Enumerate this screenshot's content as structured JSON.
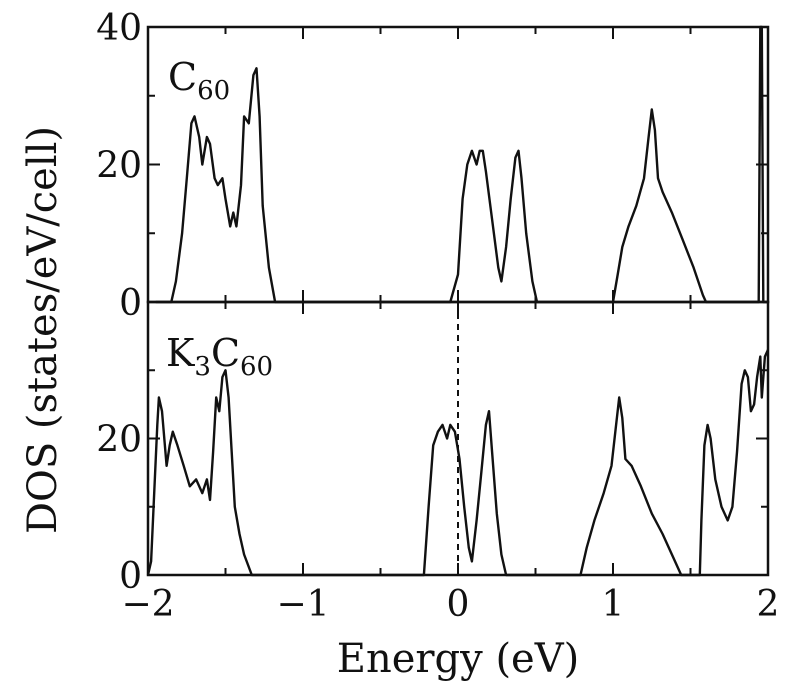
{
  "chart_data": {
    "type": "line",
    "xlabel": "Energy (eV)",
    "ylabel": "DOS (states/eV/cell)",
    "xlim": [
      -2,
      2
    ],
    "x_ticks": [
      "-2",
      "-1",
      "0",
      "1",
      "2"
    ],
    "fermi_level": 0,
    "panels": [
      {
        "label_main": "C",
        "label_sub": "60",
        "ylim": [
          0,
          40
        ],
        "y_ticks": [
          "0",
          "20",
          "40"
        ],
        "series": [
          {
            "points": [
              [
                -1.95,
                0
              ],
              [
                -1.85,
                0
              ],
              [
                -1.82,
                3
              ],
              [
                -1.78,
                10
              ],
              [
                -1.75,
                18
              ],
              [
                -1.72,
                26
              ],
              [
                -1.7,
                27
              ],
              [
                -1.67,
                24
              ],
              [
                -1.65,
                20
              ],
              [
                -1.62,
                24
              ],
              [
                -1.6,
                23
              ],
              [
                -1.57,
                18
              ],
              [
                -1.55,
                17
              ],
              [
                -1.52,
                18
              ],
              [
                -1.5,
                15
              ],
              [
                -1.47,
                11
              ],
              [
                -1.45,
                13
              ],
              [
                -1.43,
                11
              ],
              [
                -1.4,
                17
              ],
              [
                -1.38,
                27
              ],
              [
                -1.35,
                26
              ],
              [
                -1.32,
                33
              ],
              [
                -1.3,
                34
              ],
              [
                -1.28,
                27
              ],
              [
                -1.26,
                14
              ],
              [
                -1.22,
                5
              ],
              [
                -1.18,
                0
              ],
              [
                -1.1,
                0
              ],
              [
                -0.05,
                0
              ],
              [
                0,
                4
              ],
              [
                0.03,
                15
              ],
              [
                0.06,
                20
              ],
              [
                0.09,
                22
              ],
              [
                0.12,
                20
              ],
              [
                0.14,
                22
              ],
              [
                0.16,
                22
              ],
              [
                0.18,
                19
              ],
              [
                0.22,
                12
              ],
              [
                0.26,
                5
              ],
              [
                0.28,
                3
              ],
              [
                0.31,
                8
              ],
              [
                0.34,
                15
              ],
              [
                0.37,
                21
              ],
              [
                0.39,
                22
              ],
              [
                0.41,
                18
              ],
              [
                0.44,
                10
              ],
              [
                0.48,
                3
              ],
              [
                0.51,
                0
              ],
              [
                0.6,
                0
              ],
              [
                1.0,
                0
              ],
              [
                1.03,
                4
              ],
              [
                1.06,
                8
              ],
              [
                1.1,
                11
              ],
              [
                1.15,
                14
              ],
              [
                1.2,
                18
              ],
              [
                1.23,
                24
              ],
              [
                1.25,
                28
              ],
              [
                1.27,
                25
              ],
              [
                1.29,
                18
              ],
              [
                1.32,
                16
              ],
              [
                1.38,
                13
              ],
              [
                1.45,
                9
              ],
              [
                1.52,
                5
              ],
              [
                1.58,
                1
              ],
              [
                1.6,
                0
              ],
              [
                1.94,
                0
              ],
              [
                1.95,
                40
              ],
              [
                1.96,
                40
              ],
              [
                1.97,
                0
              ],
              [
                2.0,
                0
              ]
            ]
          }
        ]
      },
      {
        "label_main": "K",
        "label_sub1": "3",
        "label_main2": "C",
        "label_sub2": "60",
        "ylim": [
          0,
          40
        ],
        "y_ticks": [
          "0",
          "20"
        ],
        "series": [
          {
            "points": [
              [
                -2.0,
                0
              ],
              [
                -1.98,
                2
              ],
              [
                -1.96,
                12
              ],
              [
                -1.94,
                22
              ],
              [
                -1.93,
                26
              ],
              [
                -1.91,
                24
              ],
              [
                -1.88,
                16
              ],
              [
                -1.86,
                19
              ],
              [
                -1.84,
                21
              ],
              [
                -1.81,
                19
              ],
              [
                -1.77,
                16
              ],
              [
                -1.73,
                13
              ],
              [
                -1.69,
                14
              ],
              [
                -1.65,
                12
              ],
              [
                -1.62,
                14
              ],
              [
                -1.6,
                11
              ],
              [
                -1.58,
                18
              ],
              [
                -1.56,
                26
              ],
              [
                -1.54,
                24
              ],
              [
                -1.52,
                29
              ],
              [
                -1.5,
                30
              ],
              [
                -1.48,
                26
              ],
              [
                -1.46,
                18
              ],
              [
                -1.44,
                10
              ],
              [
                -1.41,
                6
              ],
              [
                -1.38,
                3
              ],
              [
                -1.33,
                0
              ],
              [
                -1.2,
                0
              ],
              [
                -0.22,
                0
              ],
              [
                -0.19,
                10
              ],
              [
                -0.16,
                19
              ],
              [
                -0.13,
                21
              ],
              [
                -0.1,
                22
              ],
              [
                -0.07,
                20
              ],
              [
                -0.05,
                22
              ],
              [
                -0.02,
                21
              ],
              [
                0.01,
                17
              ],
              [
                0.04,
                10
              ],
              [
                0.07,
                4
              ],
              [
                0.09,
                2
              ],
              [
                0.12,
                8
              ],
              [
                0.15,
                15
              ],
              [
                0.18,
                22
              ],
              [
                0.2,
                24
              ],
              [
                0.22,
                18
              ],
              [
                0.25,
                9
              ],
              [
                0.28,
                3
              ],
              [
                0.31,
                0
              ],
              [
                0.4,
                0
              ],
              [
                0.79,
                0
              ],
              [
                0.83,
                4
              ],
              [
                0.88,
                8
              ],
              [
                0.94,
                12
              ],
              [
                0.99,
                16
              ],
              [
                1.02,
                22
              ],
              [
                1.04,
                26
              ],
              [
                1.06,
                23
              ],
              [
                1.08,
                17
              ],
              [
                1.12,
                16
              ],
              [
                1.18,
                13
              ],
              [
                1.25,
                9
              ],
              [
                1.32,
                6
              ],
              [
                1.38,
                3
              ],
              [
                1.44,
                0
              ],
              [
                1.47,
                0
              ],
              [
                1.56,
                0
              ],
              [
                1.57,
                8
              ],
              [
                1.59,
                19
              ],
              [
                1.61,
                22
              ],
              [
                1.63,
                20
              ],
              [
                1.66,
                14
              ],
              [
                1.7,
                10
              ],
              [
                1.74,
                8
              ],
              [
                1.77,
                10
              ],
              [
                1.8,
                18
              ],
              [
                1.83,
                28
              ],
              [
                1.85,
                30
              ],
              [
                1.87,
                29
              ],
              [
                1.89,
                24
              ],
              [
                1.91,
                25
              ],
              [
                1.93,
                29
              ],
              [
                1.95,
                32
              ],
              [
                1.96,
                26
              ],
              [
                1.98,
                32
              ],
              [
                2.0,
                33
              ]
            ]
          }
        ]
      }
    ]
  }
}
